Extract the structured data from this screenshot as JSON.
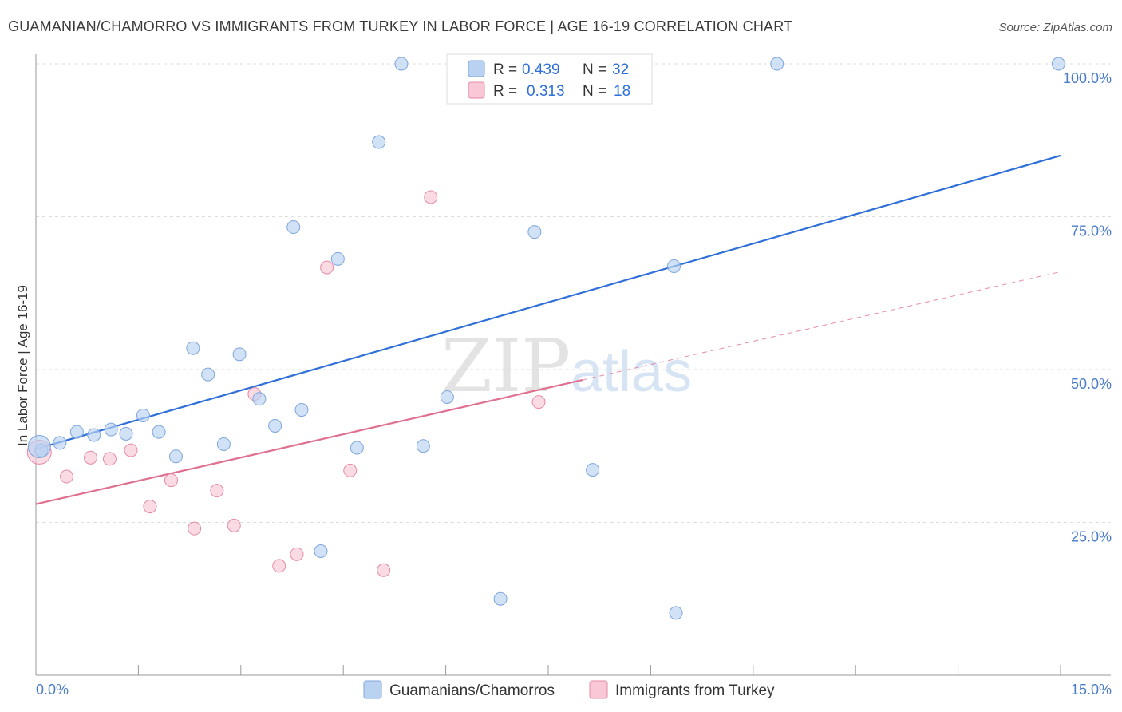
{
  "title": "GUAMANIAN/CHAMORRO VS IMMIGRANTS FROM TURKEY IN LABOR FORCE | AGE 16-19 CORRELATION CHART",
  "source": "Source: ZipAtlas.com",
  "watermark": {
    "zip": "ZIP",
    "atlas": "atlas"
  },
  "legend": {
    "series1": {
      "r_label": "R =",
      "r_value": "0.439",
      "n_label": "N =",
      "n_value": "32"
    },
    "series2": {
      "r_label": "R =",
      "r_value": "0.313",
      "n_label": "N =",
      "n_value": "18"
    }
  },
  "colors": {
    "blue_fill": "#b9d2f2",
    "blue_stroke": "#7ea6dc",
    "blue_line": "#2e6fd8",
    "pink_fill": "#f8c8d6",
    "pink_stroke": "#e58aa6",
    "pink_line": "#e0708f"
  },
  "chart_data": {
    "type": "scatter",
    "title": "GUAMANIAN/CHAMORRO VS IMMIGRANTS FROM TURKEY IN LABOR FORCE | AGE 16-19 CORRELATION CHART",
    "xlabel": "",
    "ylabel": "In Labor Force | Age 16-19",
    "xlim": [
      0,
      15
    ],
    "ylim": [
      0,
      100
    ],
    "x_tick_labels": {
      "left": "0.0%",
      "right": "15.0%"
    },
    "y_ticks": [
      25,
      50,
      75,
      100
    ],
    "y_tick_labels": [
      "25.0%",
      "50.0%",
      "75.0%",
      "100.0%"
    ],
    "series": [
      {
        "name": "Guamanians/Chamorros",
        "color": "blue",
        "points": [
          {
            "x": 0.08,
            "y": 36.8
          },
          {
            "x": 0.35,
            "y": 38.0
          },
          {
            "x": 0.6,
            "y": 39.8
          },
          {
            "x": 0.85,
            "y": 39.3
          },
          {
            "x": 1.1,
            "y": 40.2
          },
          {
            "x": 1.32,
            "y": 39.5
          },
          {
            "x": 1.57,
            "y": 42.5
          },
          {
            "x": 1.8,
            "y": 39.8
          },
          {
            "x": 2.05,
            "y": 35.8
          },
          {
            "x": 2.3,
            "y": 53.5
          },
          {
            "x": 2.52,
            "y": 49.2
          },
          {
            "x": 2.75,
            "y": 37.8
          },
          {
            "x": 2.98,
            "y": 52.5
          },
          {
            "x": 3.27,
            "y": 45.2
          },
          {
            "x": 3.5,
            "y": 40.8
          },
          {
            "x": 3.77,
            "y": 73.3
          },
          {
            "x": 3.89,
            "y": 43.4
          },
          {
            "x": 4.17,
            "y": 20.3
          },
          {
            "x": 4.42,
            "y": 68.1
          },
          {
            "x": 4.7,
            "y": 37.2
          },
          {
            "x": 5.02,
            "y": 87.2
          },
          {
            "x": 5.35,
            "y": 100.0
          },
          {
            "x": 5.67,
            "y": 37.5
          },
          {
            "x": 6.02,
            "y": 45.5
          },
          {
            "x": 6.8,
            "y": 12.5
          },
          {
            "x": 7.3,
            "y": 72.5
          },
          {
            "x": 8.15,
            "y": 33.6
          },
          {
            "x": 9.34,
            "y": 66.9
          },
          {
            "x": 9.37,
            "y": 10.2
          },
          {
            "x": 10.85,
            "y": 100.0
          },
          {
            "x": 14.97,
            "y": 100.0
          },
          {
            "x": 0.05,
            "y": 37.4
          }
        ],
        "trend": {
          "x0": 0.0,
          "y0": 37.0,
          "x1": 15.0,
          "y1": 85.0
        }
      },
      {
        "name": "Immigrants from Turkey",
        "color": "pink",
        "points": [
          {
            "x": 0.05,
            "y": 36.5
          },
          {
            "x": 0.45,
            "y": 32.5
          },
          {
            "x": 0.8,
            "y": 35.6
          },
          {
            "x": 1.08,
            "y": 35.4
          },
          {
            "x": 1.39,
            "y": 36.8
          },
          {
            "x": 1.67,
            "y": 27.6
          },
          {
            "x": 1.98,
            "y": 31.9
          },
          {
            "x": 2.32,
            "y": 24.0
          },
          {
            "x": 2.65,
            "y": 30.2
          },
          {
            "x": 2.9,
            "y": 24.5
          },
          {
            "x": 3.2,
            "y": 46.0
          },
          {
            "x": 3.56,
            "y": 17.9
          },
          {
            "x": 3.82,
            "y": 19.8
          },
          {
            "x": 4.26,
            "y": 66.7
          },
          {
            "x": 4.6,
            "y": 33.5
          },
          {
            "x": 5.09,
            "y": 17.2
          },
          {
            "x": 5.78,
            "y": 78.2
          },
          {
            "x": 7.36,
            "y": 44.7
          }
        ],
        "trend": {
          "x0": 0.0,
          "y0": 28.0,
          "x1": 8.0,
          "y1": 48.3
        },
        "trend_extension": {
          "x0": 8.0,
          "y0": 48.3,
          "x1": 15.0,
          "y1": 66.0
        }
      }
    ],
    "legend_entries": [
      "Guamanians/Chamorros",
      "Immigrants from Turkey"
    ]
  }
}
